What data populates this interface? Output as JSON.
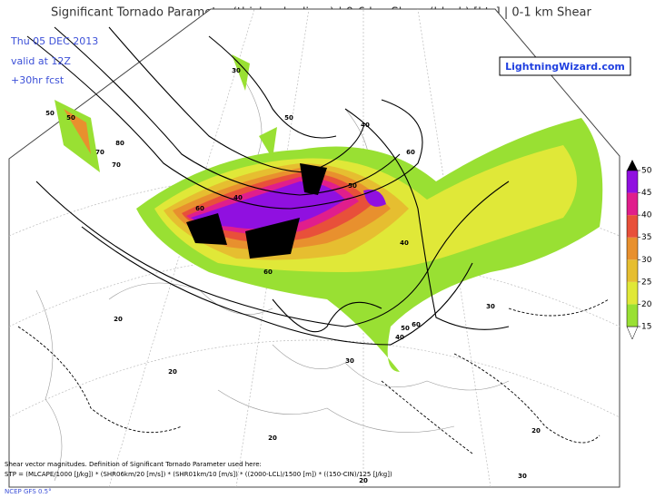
{
  "header": {
    "title": "Significant Tornado Parameter (thick color lines) | 0-6 km Shear (black) [kts] | 0-1 km Shear",
    "date": "Thu 05 DEC 2013",
    "valid": "valid at 12Z",
    "forecast": "+30hr fcst",
    "website": "LightningWizard.com"
  },
  "colorbar": {
    "ticks": [
      15,
      20,
      25,
      30,
      35,
      40,
      45,
      50
    ],
    "colors": [
      "#99e033",
      "#e0e838",
      "#e6be30",
      "#e8902e",
      "#e8503a",
      "#e01e8c",
      "#9010e0"
    ]
  },
  "map": {
    "contour_labels": [
      "50",
      "80",
      "70",
      "60",
      "50",
      "70",
      "40",
      "60",
      "50",
      "40",
      "60",
      "50",
      "40",
      "30",
      "30",
      "20",
      "20",
      "20",
      "20",
      "20",
      "30",
      "60",
      "50",
      "40",
      "30"
    ]
  },
  "footer": {
    "line1": "Shear vector magnitudes. Definition of Significant Tornado Parameter used here:",
    "line2": "STP = (MLCAPE/1000 [J/kg]) * (SHR06km/20 [m/s]) * (SHR01km/10 [m/s]) * ((2000-LCL)/1500 [m]) * ((150-CIN)/125 [J/kg])",
    "source": "NCEP GFS 0.5°"
  }
}
